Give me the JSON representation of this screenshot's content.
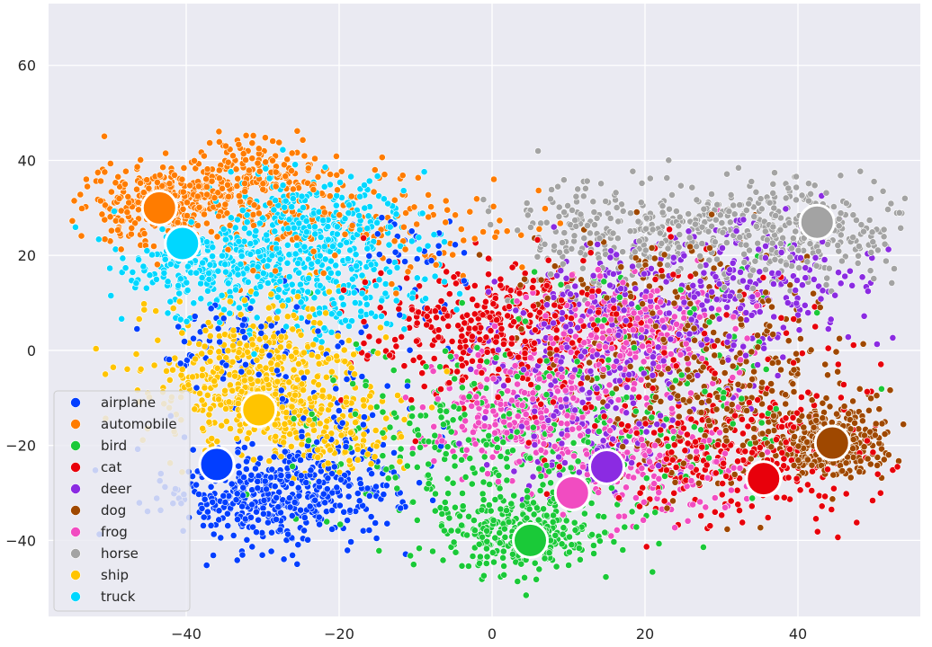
{
  "chart_data": {
    "type": "scatter",
    "title": "",
    "xlabel": "",
    "ylabel": "",
    "xlim": [
      -58,
      56
    ],
    "ylim": [
      -56,
      73
    ],
    "grid": true,
    "legend_position": "lower-left",
    "x_ticks": [
      {
        "value": -40,
        "label": "−40"
      },
      {
        "value": -20,
        "label": "−20"
      },
      {
        "value": 0,
        "label": "0"
      },
      {
        "value": 20,
        "label": "20"
      },
      {
        "value": 40,
        "label": "40"
      }
    ],
    "y_ticks": [
      {
        "value": -40,
        "label": "−40"
      },
      {
        "value": -20,
        "label": "−20"
      },
      {
        "value": 0,
        "label": "0"
      },
      {
        "value": 20,
        "label": "20"
      },
      {
        "value": 40,
        "label": "40"
      },
      {
        "value": 60,
        "label": "60"
      }
    ],
    "series": [
      {
        "name": "airplane",
        "color": "#023eff",
        "centroid": [
          -36,
          -24
        ],
        "clusters": [
          {
            "c": [
              -31,
              -31
            ],
            "s": [
              6,
              5
            ],
            "n": 320
          },
          {
            "c": [
              -22,
              -27
            ],
            "s": [
              6,
              6
            ],
            "n": 160
          },
          {
            "c": [
              -34,
              2
            ],
            "s": [
              5,
              4
            ],
            "n": 60
          },
          {
            "c": [
              -12,
              22
            ],
            "s": [
              4,
              5
            ],
            "n": 40
          },
          {
            "c": [
              -24,
              -10
            ],
            "s": [
              10,
              12
            ],
            "n": 90
          }
        ]
      },
      {
        "name": "automobile",
        "color": "#ff7c00",
        "centroid": [
          -43.5,
          30
        ],
        "clusters": [
          {
            "c": [
              -43,
              31
            ],
            "s": [
              5,
              4
            ],
            "n": 320
          },
          {
            "c": [
              -32,
              37
            ],
            "s": [
              4,
              4
            ],
            "n": 160
          },
          {
            "c": [
              -25,
              28
            ],
            "s": [
              8,
              6
            ],
            "n": 130
          },
          {
            "c": [
              -8,
              25
            ],
            "s": [
              8,
              6
            ],
            "n": 60
          }
        ]
      },
      {
        "name": "bird",
        "color": "#1ac938",
        "centroid": [
          5,
          -40
        ],
        "clusters": [
          {
            "c": [
              4,
              -38
            ],
            "s": [
              6,
              4
            ],
            "n": 300
          },
          {
            "c": [
              0,
              -20
            ],
            "s": [
              12,
              9
            ],
            "n": 320
          },
          {
            "c": [
              20,
              -5
            ],
            "s": [
              12,
              12
            ],
            "n": 120
          }
        ]
      },
      {
        "name": "cat",
        "color": "#e8000b",
        "centroid": [
          35.5,
          -27
        ],
        "clusters": [
          {
            "c": [
              2,
              5
            ],
            "s": [
              8,
              6
            ],
            "n": 320
          },
          {
            "c": [
              32,
              -22
            ],
            "s": [
              9,
              7
            ],
            "n": 300
          },
          {
            "c": [
              15,
              0
            ],
            "s": [
              14,
              12
            ],
            "n": 220
          }
        ]
      },
      {
        "name": "deer",
        "color": "#8b2be2",
        "centroid": [
          15,
          -24.5
        ],
        "clusters": [
          {
            "c": [
              12,
              -15
            ],
            "s": [
              6,
              7
            ],
            "n": 160
          },
          {
            "c": [
              18,
              5
            ],
            "s": [
              10,
              8
            ],
            "n": 320
          },
          {
            "c": [
              35,
              15
            ],
            "s": [
              8,
              7
            ],
            "n": 180
          }
        ]
      },
      {
        "name": "dog",
        "color": "#9f4800",
        "centroid": [
          44.5,
          -19.5
        ],
        "clusters": [
          {
            "c": [
              44,
              -20
            ],
            "s": [
              4,
              4
            ],
            "n": 300
          },
          {
            "c": [
              30,
              -10
            ],
            "s": [
              8,
              9
            ],
            "n": 260
          },
          {
            "c": [
              22,
              10
            ],
            "s": [
              10,
              8
            ],
            "n": 160
          }
        ]
      },
      {
        "name": "frog",
        "color": "#f14cc1",
        "centroid": [
          10.5,
          -30
        ],
        "clusters": [
          {
            "c": [
              5,
              -13
            ],
            "s": [
              6,
              6
            ],
            "n": 320
          },
          {
            "c": [
              18,
              4
            ],
            "s": [
              6,
              6
            ],
            "n": 260
          },
          {
            "c": [
              20,
              -25
            ],
            "s": [
              6,
              6
            ],
            "n": 160
          }
        ]
      },
      {
        "name": "horse",
        "color": "#a3a3a3",
        "centroid": [
          42.5,
          27
        ],
        "clusters": [
          {
            "c": [
              38,
              25
            ],
            "s": [
              9,
              5
            ],
            "n": 400
          },
          {
            "c": [
              15,
              25
            ],
            "s": [
              8,
              6
            ],
            "n": 220
          }
        ]
      },
      {
        "name": "ship",
        "color": "#ffc400",
        "centroid": [
          -30.5,
          -12.5
        ],
        "clusters": [
          {
            "c": [
              -31,
              -5
            ],
            "s": [
              7,
              7
            ],
            "n": 520
          },
          {
            "c": [
              -22,
              -17
            ],
            "s": [
              6,
              5
            ],
            "n": 200
          }
        ]
      },
      {
        "name": "truck",
        "color": "#00d7ff",
        "centroid": [
          -40.5,
          22.5
        ],
        "clusters": [
          {
            "c": [
              -23,
              25
            ],
            "s": [
              6,
              6
            ],
            "n": 360
          },
          {
            "c": [
              -37,
              18
            ],
            "s": [
              6,
              4
            ],
            "n": 220
          },
          {
            "c": [
              -24,
              12
            ],
            "s": [
              8,
              5
            ],
            "n": 180
          }
        ]
      }
    ]
  }
}
